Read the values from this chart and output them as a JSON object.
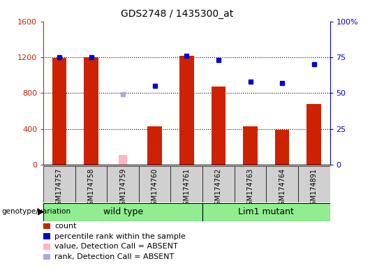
{
  "title": "GDS2748 / 1435300_at",
  "samples": [
    "GSM174757",
    "GSM174758",
    "GSM174759",
    "GSM174760",
    "GSM174761",
    "GSM174762",
    "GSM174763",
    "GSM174764",
    "GSM174891"
  ],
  "counts": [
    1190,
    1200,
    null,
    430,
    1215,
    870,
    430,
    390,
    680
  ],
  "absent_counts": [
    null,
    null,
    110,
    null,
    null,
    null,
    null,
    null,
    null
  ],
  "percentile_ranks": [
    75,
    75,
    null,
    55,
    76,
    73,
    58,
    57,
    70
  ],
  "absent_ranks": [
    null,
    null,
    49,
    null,
    null,
    null,
    null,
    null,
    null
  ],
  "left_ylim": [
    0,
    1600
  ],
  "right_ylim": [
    0,
    100
  ],
  "left_yticks": [
    0,
    400,
    800,
    1200,
    1600
  ],
  "right_yticks": [
    0,
    25,
    50,
    75,
    100
  ],
  "right_yticklabels": [
    "0",
    "25",
    "50",
    "75",
    "100%"
  ],
  "bar_color": "#CC2200",
  "absent_bar_color": "#FFB6C1",
  "rank_color": "#0000CC",
  "absent_rank_color": "#AAAADD",
  "bg_color": "#FFFFFF",
  "axis_label_color_left": "#CC2200",
  "axis_label_color_right": "#0000CC",
  "bar_width": 0.45,
  "absent_bar_width": 0.25,
  "dotted_grid_values": [
    400,
    800,
    1200
  ]
}
